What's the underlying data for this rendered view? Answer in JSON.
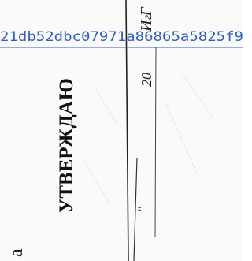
{
  "stamp": {
    "title": "УТВЕРЖДАЮ",
    "initials": "И.Г",
    "year_prefix": "20",
    "year_suffix": "г.",
    "quote": "\""
  },
  "hash": "21db52dbc07971a86865a5825f9",
  "edge_letter": "а"
}
